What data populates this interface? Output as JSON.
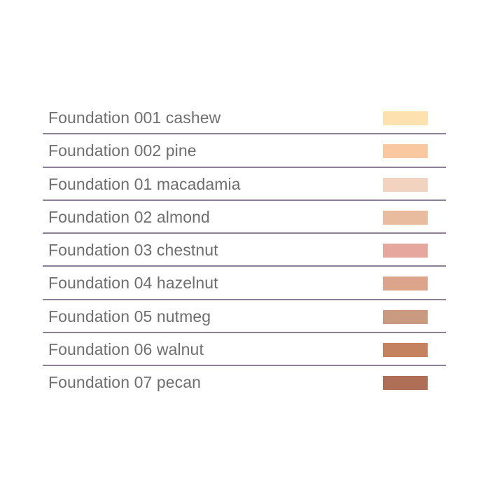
{
  "shades": [
    {
      "name": "Foundation 001 cashew",
      "color": "#fde2b0"
    },
    {
      "name": "Foundation 002 pine",
      "color": "#f9c8a0"
    },
    {
      "name": "Foundation 01 macadamia",
      "color": "#f2d3c0"
    },
    {
      "name": "Foundation 02 almond",
      "color": "#e9bca0"
    },
    {
      "name": "Foundation 03 chestnut",
      "color": "#e6a89e"
    },
    {
      "name": "Foundation 04 hazelnut",
      "color": "#dca48a"
    },
    {
      "name": "Foundation 05 nutmeg",
      "color": "#c99980"
    },
    {
      "name": "Foundation 06 walnut",
      "color": "#c4825f"
    },
    {
      "name": "Foundation 07 pecan",
      "color": "#ae6f56"
    }
  ]
}
